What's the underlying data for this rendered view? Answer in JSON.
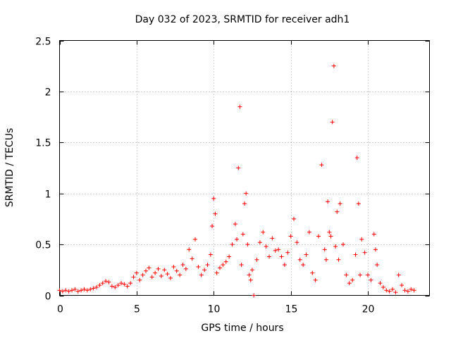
{
  "chart_data": {
    "type": "scatter",
    "title": "Day 032 of 2023, SRMTID for receiver adh1",
    "xlabel": "GPS time / hours",
    "ylabel": "SRMTID / TECUs",
    "xlim": [
      0,
      24
    ],
    "ylim": [
      0,
      2.5
    ],
    "xticks": [
      0,
      5,
      10,
      15,
      20
    ],
    "xtick_labels": [
      "0",
      "5",
      "10",
      "15",
      "20"
    ],
    "yticks": [
      0,
      0.5,
      1,
      1.5,
      2,
      2.5
    ],
    "ytick_labels": [
      "0",
      "0.5",
      "1",
      "1.5",
      "2",
      "2.5"
    ],
    "grid": true,
    "marker": "+",
    "series": [
      {
        "name": "adh1",
        "color": "#ff0000",
        "x": [
          0.0,
          0.2,
          0.4,
          0.6,
          0.8,
          1.0,
          1.2,
          1.4,
          1.6,
          1.8,
          2.0,
          2.2,
          2.4,
          2.6,
          2.8,
          3.0,
          3.2,
          3.4,
          3.6,
          3.8,
          4.0,
          4.2,
          4.4,
          4.6,
          4.8,
          5.0,
          5.2,
          5.4,
          5.6,
          5.8,
          6.0,
          6.2,
          6.4,
          6.6,
          6.8,
          7.0,
          7.2,
          7.4,
          7.6,
          7.8,
          8.0,
          8.2,
          8.4,
          8.6,
          8.8,
          9.0,
          9.2,
          9.4,
          9.6,
          9.8,
          9.9,
          10.0,
          10.1,
          10.2,
          10.4,
          10.6,
          10.8,
          11.0,
          11.2,
          11.4,
          11.5,
          11.6,
          11.7,
          11.8,
          11.9,
          12.0,
          12.1,
          12.2,
          12.3,
          12.4,
          12.5,
          12.6,
          12.8,
          13.0,
          13.2,
          13.4,
          13.6,
          13.8,
          14.0,
          14.2,
          14.4,
          14.6,
          14.8,
          15.0,
          15.2,
          15.4,
          15.6,
          15.8,
          16.0,
          16.2,
          16.4,
          16.6,
          16.8,
          17.0,
          17.2,
          17.3,
          17.4,
          17.5,
          17.6,
          17.7,
          17.8,
          17.9,
          18.0,
          18.1,
          18.2,
          18.4,
          18.6,
          18.8,
          19.0,
          19.2,
          19.3,
          19.4,
          19.5,
          19.6,
          19.8,
          20.0,
          20.2,
          20.4,
          20.5,
          20.6,
          20.8,
          21.0,
          21.2,
          21.4,
          21.6,
          21.8,
          22.0,
          22.2,
          22.4,
          22.6,
          22.8,
          23.0
        ],
        "y": [
          0.05,
          0.04,
          0.05,
          0.04,
          0.05,
          0.06,
          0.04,
          0.05,
          0.06,
          0.05,
          0.06,
          0.07,
          0.08,
          0.1,
          0.12,
          0.14,
          0.13,
          0.09,
          0.08,
          0.1,
          0.12,
          0.11,
          0.09,
          0.12,
          0.18,
          0.22,
          0.15,
          0.2,
          0.24,
          0.27,
          0.18,
          0.22,
          0.26,
          0.19,
          0.25,
          0.21,
          0.17,
          0.28,
          0.24,
          0.2,
          0.3,
          0.26,
          0.45,
          0.36,
          0.55,
          0.28,
          0.2,
          0.25,
          0.3,
          0.4,
          0.68,
          0.95,
          0.8,
          0.22,
          0.27,
          0.3,
          0.33,
          0.38,
          0.5,
          0.7,
          0.55,
          1.25,
          1.85,
          0.3,
          0.6,
          0.9,
          1.0,
          0.5,
          0.2,
          0.15,
          0.25,
          0.0,
          0.35,
          0.52,
          0.62,
          0.48,
          0.38,
          0.56,
          0.44,
          0.45,
          0.38,
          0.3,
          0.42,
          0.58,
          0.75,
          0.52,
          0.35,
          0.3,
          0.4,
          0.62,
          0.22,
          0.15,
          0.58,
          1.28,
          0.45,
          0.35,
          0.92,
          0.62,
          0.58,
          1.7,
          2.25,
          0.48,
          0.82,
          0.35,
          0.9,
          0.5,
          0.2,
          0.12,
          0.15,
          0.4,
          1.35,
          0.9,
          0.2,
          0.55,
          0.42,
          0.2,
          0.15,
          0.6,
          0.45,
          0.3,
          0.12,
          0.08,
          0.05,
          0.04,
          0.06,
          0.03,
          0.2,
          0.1,
          0.05,
          0.04,
          0.06,
          0.05
        ]
      }
    ]
  }
}
